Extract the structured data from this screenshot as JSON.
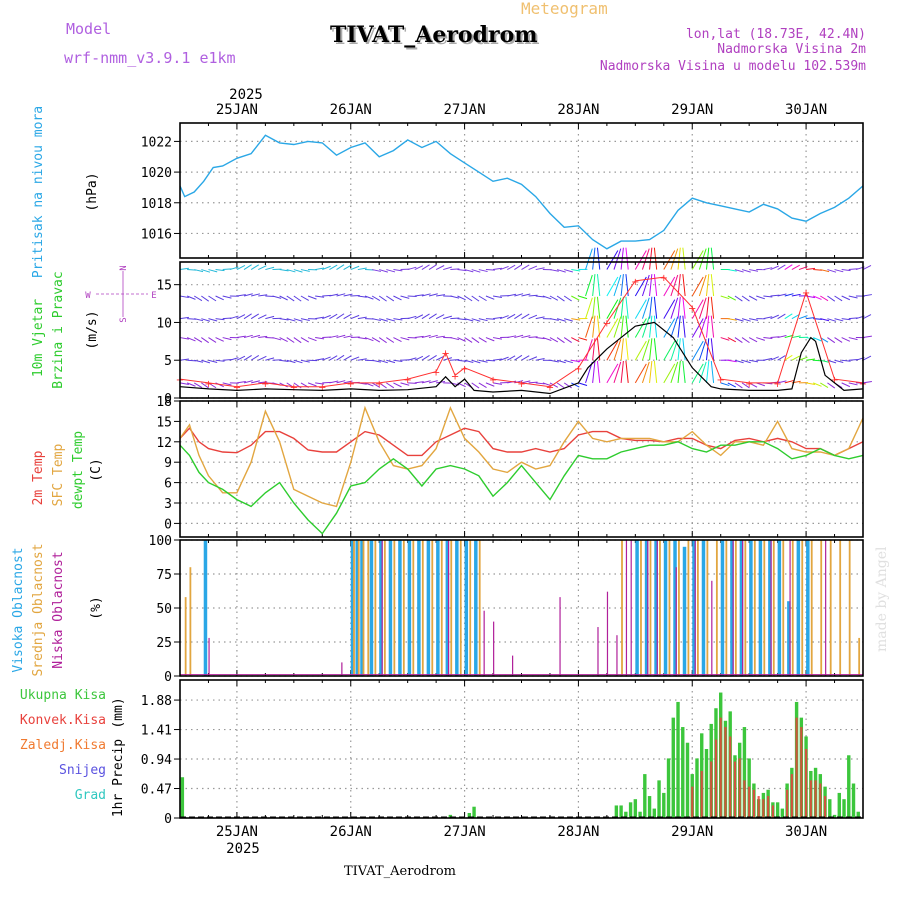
{
  "header": {
    "label_meteogram": "Meteogram",
    "label_model": "Model",
    "model_name": "wrf-nmm_v3.9.1 e1km",
    "station_title": "TIVAT_Aerodrom",
    "coords": "lon,lat (18.73E, 42.4N)",
    "altitude": "Nadmorska Visina 2m",
    "model_altitude": "Nadmorska Visina u modelu 102.539m",
    "year_label": "2025",
    "footer_station": "TIVAT_Aerodrom",
    "watermark": "made by Angel"
  },
  "colors": {
    "pressure": "#2aa7e6",
    "temp": "#e8413c",
    "sfc": "#e2a640",
    "dew": "#2ecc2e",
    "visoka": "#2aa7e6",
    "srednja": "#e2a640",
    "niska": "#b0209a",
    "ukupna": "#3cc63c",
    "konvek": "#e8413c",
    "zaledj": "#f07a30",
    "snijeg": "#5a52e0",
    "grad": "#30c8c0",
    "wind_speed": "#000000",
    "gust": "#ff3030",
    "grid": "#999999"
  },
  "chart_data": [
    {
      "type": "line",
      "panel": "pressure",
      "ylabel_main": "Pritisak na nivou mora",
      "unit": "(hPa)",
      "ylim": [
        1014.4,
        1023.2
      ],
      "yticks": [
        1016,
        1018,
        1020,
        1022
      ],
      "x_days": [
        "25JAN",
        "26JAN",
        "27JAN",
        "28JAN",
        "29JAN",
        "30JAN"
      ],
      "x_range_hours": [
        0,
        144
      ],
      "grid": true,
      "series": [
        {
          "x": [
            0,
            1,
            3,
            5,
            7,
            9,
            12,
            15,
            18,
            21,
            24,
            27,
            30,
            33,
            36,
            39,
            42,
            45,
            48,
            51,
            54,
            57,
            60,
            63,
            66,
            69,
            72,
            75,
            78,
            81,
            84,
            87,
            90,
            93,
            96,
            99,
            102,
            105,
            108,
            111,
            114,
            117,
            120,
            123,
            126,
            129,
            132,
            135,
            138,
            141,
            144
          ],
          "y": [
            1019.1,
            1018.4,
            1018.7,
            1019.4,
            1020.3,
            1020.4,
            1020.9,
            1021.2,
            1022.4,
            1021.9,
            1021.8,
            1022.0,
            1021.9,
            1021.1,
            1021.6,
            1021.9,
            1021.0,
            1021.4,
            1022.1,
            1021.6,
            1022.0,
            1021.2,
            1020.6,
            1020.0,
            1019.4,
            1019.6,
            1019.2,
            1018.4,
            1017.3,
            1016.4,
            1016.5,
            1015.6,
            1015.0,
            1015.5,
            1015.5,
            1015.6,
            1016.2,
            1017.5,
            1018.3,
            1018.0,
            1017.8,
            1017.6,
            1017.4,
            1017.9,
            1017.6,
            1017.0,
            1016.8,
            1017.3,
            1017.7,
            1018.3,
            1019.1
          ]
        }
      ]
    },
    {
      "type": "line",
      "panel": "wind",
      "ylabel_main": "10m Vjetar",
      "ylabel_sub": "Brzina i Pravac",
      "unit": "(m/s)",
      "compass_labels": [
        "N",
        "W",
        "E",
        "S"
      ],
      "ylim": [
        0,
        18
      ],
      "yticks": [
        0,
        5,
        10,
        15
      ],
      "grid": true,
      "series": [
        {
          "name": "speed",
          "x": [
            0,
            6,
            12,
            18,
            24,
            30,
            36,
            42,
            48,
            54,
            56,
            58,
            60,
            62,
            66,
            72,
            78,
            84,
            86,
            90,
            96,
            100,
            104,
            108,
            112,
            114,
            120,
            126,
            129,
            131,
            133,
            134,
            136,
            140,
            144
          ],
          "y": [
            1.5,
            1.2,
            1.0,
            1.2,
            1.1,
            1.0,
            1.2,
            1.0,
            1.1,
            1.5,
            2.8,
            1.5,
            2.5,
            1.0,
            0.8,
            1.0,
            0.6,
            2.0,
            4.0,
            6.5,
            9.5,
            10.0,
            8.0,
            4.0,
            1.5,
            1.2,
            1.0,
            1.0,
            1.2,
            6.0,
            8.0,
            7.5,
            3.0,
            1.0,
            1.2
          ]
        },
        {
          "name": "gusts",
          "x": [
            0,
            6,
            12,
            18,
            24,
            30,
            36,
            42,
            48,
            54,
            56,
            58,
            60,
            66,
            72,
            78,
            84,
            90,
            96,
            102,
            108,
            114,
            120,
            126,
            132,
            138,
            144
          ],
          "y": [
            2.5,
            2.0,
            1.5,
            2.0,
            1.5,
            1.5,
            2.0,
            2.0,
            2.5,
            3.5,
            6.0,
            3.0,
            4.0,
            2.5,
            2.0,
            1.5,
            4.0,
            10.0,
            15.5,
            16.0,
            12.0,
            2.5,
            2.0,
            2.0,
            14.0,
            2.5,
            2.0
          ]
        }
      ]
    },
    {
      "type": "line",
      "panel": "temperature",
      "ylabel_main": "2m Temp",
      "ylabel_sub": "SFC Temp",
      "ylabel_third": "dewpt Temp",
      "unit": "(C)",
      "ylim": [
        -2,
        18
      ],
      "yticks": [
        0,
        3,
        6,
        9,
        12,
        15,
        18
      ],
      "grid": true,
      "series": [
        {
          "name": "2m Temp",
          "x": [
            0,
            2,
            4,
            6,
            9,
            12,
            15,
            18,
            21,
            24,
            27,
            30,
            33,
            36,
            39,
            42,
            45,
            48,
            51,
            54,
            57,
            60,
            63,
            66,
            69,
            72,
            75,
            78,
            81,
            84,
            87,
            90,
            93,
            96,
            99,
            102,
            105,
            108,
            111,
            114,
            117,
            120,
            123,
            126,
            129,
            132,
            135,
            138,
            141,
            144
          ],
          "y": [
            12.5,
            14.0,
            12.0,
            11.0,
            10.5,
            10.4,
            11.5,
            13.5,
            13.5,
            12.5,
            10.8,
            10.5,
            10.5,
            12.0,
            13.5,
            13.0,
            11.5,
            10.0,
            10.0,
            12.0,
            13.0,
            14.0,
            13.5,
            11.0,
            10.5,
            10.5,
            11.0,
            10.5,
            11.0,
            13.0,
            13.5,
            13.5,
            12.5,
            12.2,
            12.2,
            12.0,
            12.5,
            12.5,
            11.5,
            11.0,
            12.2,
            12.5,
            12.0,
            12.5,
            12.0,
            11.0,
            11.0,
            10.0,
            11.0,
            12.0
          ]
        },
        {
          "name": "SFC Temp",
          "x": [
            0,
            2,
            4,
            6,
            9,
            12,
            15,
            18,
            21,
            24,
            27,
            30,
            33,
            36,
            39,
            42,
            45,
            48,
            51,
            54,
            57,
            60,
            63,
            66,
            69,
            72,
            75,
            78,
            81,
            84,
            87,
            90,
            93,
            96,
            99,
            102,
            105,
            108,
            111,
            114,
            117,
            120,
            123,
            126,
            129,
            132,
            135,
            138,
            141,
            144
          ],
          "y": [
            12.5,
            14.5,
            10.0,
            7.0,
            4.5,
            4.5,
            9.0,
            16.5,
            12.0,
            5.0,
            4.0,
            3.0,
            2.5,
            9.0,
            17.0,
            12.0,
            8.5,
            8.0,
            8.5,
            11.0,
            17.0,
            12.5,
            10.5,
            8.0,
            7.5,
            9.0,
            8.0,
            8.5,
            12.0,
            15.0,
            12.5,
            12.0,
            12.5,
            12.5,
            12.5,
            12.0,
            12.0,
            13.5,
            11.5,
            10.0,
            12.0,
            12.0,
            11.5,
            15.0,
            11.0,
            10.5,
            10.5,
            10.0,
            11.0,
            15.5
          ]
        },
        {
          "name": "dewpt Temp",
          "x": [
            0,
            2,
            4,
            6,
            9,
            12,
            15,
            18,
            21,
            24,
            27,
            30,
            33,
            36,
            39,
            42,
            45,
            48,
            51,
            54,
            57,
            60,
            63,
            66,
            69,
            72,
            75,
            78,
            81,
            84,
            87,
            90,
            93,
            96,
            99,
            102,
            105,
            108,
            111,
            114,
            117,
            120,
            123,
            126,
            129,
            132,
            135,
            138,
            141,
            144
          ],
          "y": [
            11.5,
            10.0,
            7.5,
            6.0,
            5.0,
            3.5,
            2.5,
            4.5,
            6.0,
            3.0,
            0.5,
            -1.5,
            1.5,
            5.5,
            6.0,
            8.0,
            9.5,
            8.0,
            5.5,
            8.0,
            8.5,
            8.0,
            7.0,
            4.0,
            6.0,
            8.5,
            6.0,
            3.5,
            7.0,
            10.0,
            9.5,
            9.5,
            10.5,
            11.0,
            11.5,
            11.5,
            12.0,
            11.0,
            10.5,
            11.5,
            11.5,
            12.0,
            12.0,
            11.0,
            9.5,
            10.0,
            11.0,
            10.0,
            9.5,
            10.0
          ]
        }
      ]
    },
    {
      "type": "bar",
      "panel": "cloud",
      "ylabel_main": "Visoka Oblacnost",
      "ylabel_sub": "Srednja Oblacnost",
      "ylabel_third": "Niska Oblacnost",
      "unit": "(%)",
      "ylim": [
        0,
        100
      ],
      "yticks": [
        0,
        25,
        50,
        75,
        100
      ],
      "grid": true,
      "series": [
        {
          "name": "Visoka",
          "x": [
            5,
            36,
            37,
            38,
            40,
            42,
            44,
            46,
            48,
            50,
            52,
            54,
            56,
            58,
            60,
            62,
            96,
            98,
            100,
            102,
            104,
            106,
            108,
            110,
            114,
            116,
            118,
            120,
            122,
            124,
            126,
            128,
            130,
            132
          ],
          "values": [
            100,
            100,
            100,
            100,
            100,
            100,
            100,
            100,
            100,
            100,
            100,
            100,
            100,
            100,
            100,
            100,
            100,
            100,
            100,
            100,
            100,
            95,
            100,
            100,
            100,
            100,
            100,
            100,
            100,
            100,
            100,
            55,
            100,
            100
          ]
        },
        {
          "name": "Srednja",
          "x": [
            1,
            2,
            36.5,
            37.5,
            38.5,
            39.5,
            41,
            43,
            45,
            47,
            49,
            51,
            53,
            55,
            57,
            59,
            61,
            63,
            93,
            97,
            99,
            101,
            103,
            105,
            107,
            109,
            111,
            113,
            115,
            117,
            119,
            121,
            123,
            125,
            127,
            129,
            131,
            133,
            135,
            137,
            139,
            141,
            143
          ],
          "values": [
            58,
            80,
            100,
            100,
            100,
            100,
            100,
            100,
            100,
            100,
            100,
            100,
            100,
            100,
            100,
            100,
            100,
            100,
            100,
            100,
            100,
            100,
            100,
            100,
            100,
            100,
            100,
            100,
            100,
            100,
            100,
            100,
            100,
            100,
            100,
            100,
            100,
            100,
            100,
            100,
            100,
            100,
            28
          ]
        },
        {
          "name": "Niska",
          "x": [
            6,
            34,
            42.5,
            56.5,
            64,
            66,
            70,
            80,
            88,
            90,
            92,
            94,
            95,
            98.5,
            100.5,
            104.5,
            108.5,
            112,
            116.5,
            118.5,
            124.5,
            128.5,
            136
          ],
          "values": [
            28,
            10,
            100,
            100,
            48,
            40,
            15,
            58,
            36,
            62,
            30,
            100,
            100,
            100,
            100,
            80,
            100,
            70,
            100,
            100,
            100,
            100,
            100
          ]
        }
      ]
    },
    {
      "type": "bar",
      "panel": "precip",
      "ylabel_main": "1hr Precip",
      "unit": "(mm)",
      "legend": [
        "Ukupna Kisa",
        "Konvek.Kisa",
        "Zaledj.Kisa",
        "Snijeg",
        "Grad"
      ],
      "ylim": [
        0,
        2.2
      ],
      "yticks": [
        0,
        0.47,
        0.94,
        1.41,
        1.88
      ],
      "grid": true,
      "series": [
        {
          "name": "Ukupna Kisa",
          "x": [
            0.5,
            57,
            61,
            62,
            92,
            93,
            94,
            95,
            96,
            97,
            98,
            99,
            100,
            101,
            102,
            103,
            104,
            105,
            106,
            107,
            108,
            109,
            110,
            111,
            112,
            113,
            114,
            115,
            116,
            117,
            118,
            119,
            120,
            121,
            122,
            123,
            124,
            125,
            126,
            127,
            128,
            129,
            130,
            131,
            132,
            133,
            134,
            135,
            136,
            137,
            138,
            139,
            140,
            141,
            142,
            143
          ],
          "values": [
            0.65,
            0.05,
            0.08,
            0.18,
            0.2,
            0.2,
            0.1,
            0.25,
            0.3,
            0.1,
            0.7,
            0.35,
            0.15,
            0.6,
            0.4,
            0.95,
            1.6,
            1.85,
            1.45,
            1.2,
            0.7,
            0.95,
            1.35,
            1.1,
            1.5,
            1.75,
            2.0,
            1.55,
            1.7,
            1.0,
            1.2,
            1.45,
            0.95,
            0.55,
            0.3,
            0.4,
            0.45,
            0.25,
            0.25,
            0.15,
            0.55,
            0.8,
            1.85,
            1.6,
            1.3,
            0.75,
            0.8,
            0.7,
            0.5,
            0.3,
            0.05,
            0.4,
            0.3,
            1.0,
            0.55,
            0.1
          ]
        },
        {
          "name": "Konvek.Kisa",
          "x": [
            108,
            110,
            112,
            113,
            114,
            115,
            116,
            117,
            118,
            119,
            120,
            121,
            122,
            123,
            124,
            125,
            128,
            129,
            130,
            131,
            132,
            133,
            134,
            135,
            136
          ],
          "values": [
            0.5,
            0.75,
            0.9,
            1.25,
            1.6,
            1.45,
            1.3,
            0.9,
            0.95,
            0.6,
            0.5,
            0.45,
            0.35,
            0.3,
            0.35,
            0.2,
            0.45,
            0.7,
            1.6,
            1.45,
            1.1,
            0.6,
            0.6,
            0.55,
            0.35
          ]
        }
      ]
    }
  ]
}
